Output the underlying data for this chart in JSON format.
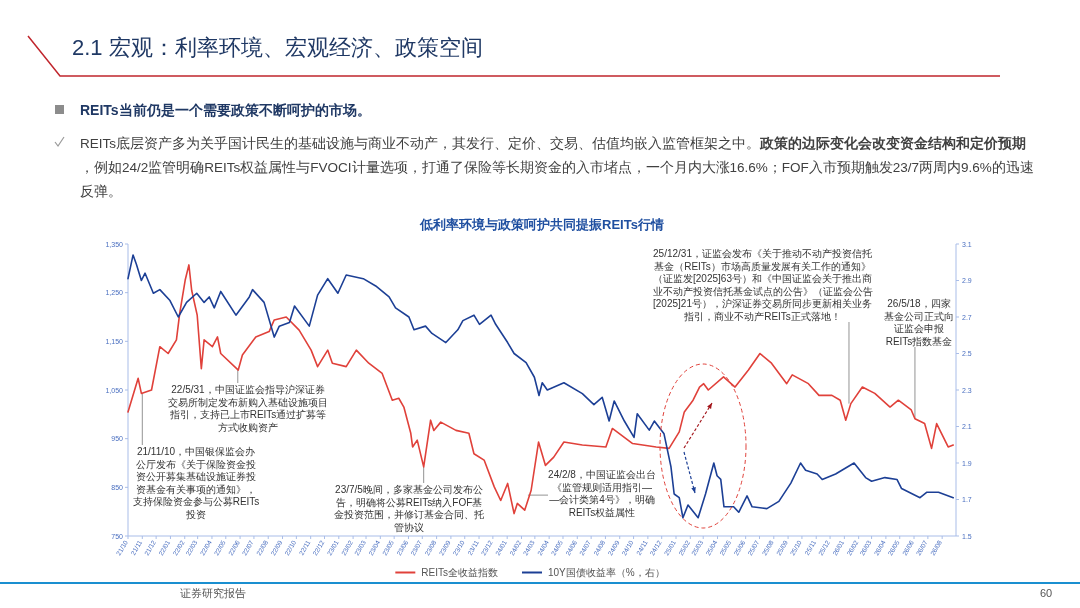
{
  "chart_data": {
    "type": "line",
    "title": "低利率环境与政策呵护共同提振REITs行情",
    "annotations": [
      "2.1 宏观：利率环境、宏观经济、政策空间",
      "REITs当前仍是一个需要政策不断呵护的市场。",
      "REITs底层资产多为关乎国计民生的基础设施与商业不动产，其发行、定价、交易、估值均嵌入监管框架之中。**政策的边际变化会改变资金结构和定价预期**，例如24/2监管明确REITs权益属性与FVOCI计量选项，打通了保险等长期资金的入市堵点，一个月内大涨16.6%；FOF入市预期触发23/7两周内9.6%的迅速反弹。",
      "证券研究报告",
      "60",
      {
        "text": "21/11/10，中国银保监会办公厅发布《关于保险资金投资公开募集基础设施证券投资基金有关事项的通知》，支持保险资金参与公募REITs投资",
        "x": "2021-11-01",
        "y": 1043
      },
      {
        "text": "22/5/31，中国证监会指导沪深证券交易所制定发布新购入基础设施项目指引，支持已上市REITs通过扩募等方式收购资产",
        "x": "2022-05-27",
        "y": 1091
      },
      {
        "text": "23/7/5晚间，多家基金公司发布公告，明确将公募REITs纳入FOF基金投资范围，并修订基金合同、托管协议",
        "x": "2023-07-04",
        "y": 892
      },
      {
        "text": "24/2/8，中国证监会出台《监管规则适用指引——会计类第4号》，明确REITs权益属性",
        "x": "2024-02-15",
        "y": 834
      },
      {
        "text": "25/12/31，证监会发布《关于推动不动产投资信托基金（REITs）市场高质量发展有关工作的通知》（证监发[2025]63号）和《中国证监会关于推出商业不动产投资信托基金试点的公告》（证监会公告[2025]21号），沪深证券交易所同步更新相关业务指引，商业不动产REITs正式落地！",
        "x": "2026-01-11",
        "y": 1022
      },
      {
        "text": "26/5/18，四家基金公司正式向证监会申报REITs指数基金",
        "x": "2026-06-03",
        "y": 991
      }
    ],
    "xlim": [
      "2021-10-01",
      "2026-08-31"
    ],
    "xticks": [
      {
        "value": "2021-10-01",
        "label": "21/10"
      },
      {
        "value": "2021-11-01",
        "label": "21/11"
      },
      {
        "value": "2021-12-01",
        "label": "21/12"
      },
      {
        "value": "2022-01-01",
        "label": "22/01"
      },
      {
        "value": "2022-02-01",
        "label": "22/02"
      },
      {
        "value": "2022-03-01",
        "label": "22/03"
      },
      {
        "value": "2022-04-01",
        "label": "22/04"
      },
      {
        "value": "2022-05-01",
        "label": "22/05"
      },
      {
        "value": "2022-06-01",
        "label": "22/06"
      },
      {
        "value": "2022-07-01",
        "label": "22/07"
      },
      {
        "value": "2022-08-01",
        "label": "22/08"
      },
      {
        "value": "2022-09-01",
        "label": "22/09"
      },
      {
        "value": "2022-10-01",
        "label": "22/10"
      },
      {
        "value": "2022-11-01",
        "label": "22/11"
      },
      {
        "value": "2022-12-01",
        "label": "22/12"
      },
      {
        "value": "2023-01-01",
        "label": "23/01"
      },
      {
        "value": "2023-02-01",
        "label": "23/02"
      },
      {
        "value": "2023-03-01",
        "label": "23/03"
      },
      {
        "value": "2023-04-01",
        "label": "23/04"
      },
      {
        "value": "2023-05-01",
        "label": "23/05"
      },
      {
        "value": "2023-06-01",
        "label": "23/06"
      },
      {
        "value": "2023-07-01",
        "label": "23/07"
      },
      {
        "value": "2023-08-01",
        "label": "23/08"
      },
      {
        "value": "2023-09-01",
        "label": "23/09"
      },
      {
        "value": "2023-10-01",
        "label": "23/10"
      },
      {
        "value": "2023-11-01",
        "label": "23/11"
      },
      {
        "value": "2023-12-01",
        "label": "23/12"
      },
      {
        "value": "2024-01-01",
        "label": "24/01"
      },
      {
        "value": "2024-02-01",
        "label": "24/02"
      },
      {
        "value": "2024-03-01",
        "label": "24/03"
      },
      {
        "value": "2024-04-01",
        "label": "24/04"
      },
      {
        "value": "2024-05-01",
        "label": "24/05"
      },
      {
        "value": "2024-06-01",
        "label": "24/06"
      },
      {
        "value": "2024-07-01",
        "label": "24/07"
      },
      {
        "value": "2024-08-01",
        "label": "24/08"
      },
      {
        "value": "2024-09-01",
        "label": "24/09"
      },
      {
        "value": "2024-10-01",
        "label": "24/10"
      },
      {
        "value": "2024-11-01",
        "label": "24/11"
      },
      {
        "value": "2024-12-01",
        "label": "24/12"
      },
      {
        "value": "2025-01-01",
        "label": "25/01"
      },
      {
        "value": "2025-02-01",
        "label": "25/02"
      },
      {
        "value": "2025-03-01",
        "label": "25/03"
      },
      {
        "value": "2025-04-01",
        "label": "25/04"
      },
      {
        "value": "2025-05-01",
        "label": "25/05"
      },
      {
        "value": "2025-06-01",
        "label": "25/06"
      },
      {
        "value": "2025-07-01",
        "label": "25/07"
      },
      {
        "value": "2025-08-01",
        "label": "25/08"
      },
      {
        "value": "2025-09-01",
        "label": "25/09"
      },
      {
        "value": "2025-10-01",
        "label": "25/10"
      },
      {
        "value": "2025-11-01",
        "label": "25/11"
      },
      {
        "value": "2025-12-01",
        "label": "25/12"
      },
      {
        "value": "2026-01-01",
        "label": "26/01"
      },
      {
        "value": "2026-02-01",
        "label": "26/02"
      },
      {
        "value": "2026-03-01",
        "label": "26/03"
      },
      {
        "value": "2026-04-01",
        "label": "26/04"
      },
      {
        "value": "2026-05-01",
        "label": "26/05"
      },
      {
        "value": "2026-06-01",
        "label": "26/06"
      },
      {
        "value": "2026-07-01",
        "label": "26/07"
      },
      {
        "value": "2026-08-01",
        "label": "26/08"
      }
    ],
    "ylim": [
      750,
      1350
    ],
    "yticks": [
      750,
      850,
      950,
      {
        "value": 1050,
        "label": "1,050"
      },
      {
        "value": 1150,
        "label": "1,150"
      },
      {
        "value": 1250,
        "label": "1,250"
      },
      {
        "value": 1350,
        "label": "1,350"
      }
    ],
    "y2lim": [
      1.5,
      3.1
    ],
    "y2ticks": [
      1.5,
      1.7,
      1.9,
      2.1,
      2.3,
      2.5,
      2.7,
      2.9,
      3.1
    ],
    "legend": "bottom",
    "series": [
      {
        "name": "REITs全收益指数",
        "color": "#e0413a",
        "x": [
          "2021-10-01",
          "2021-10-23",
          "2021-10-30",
          "2021-11-21",
          "2021-12-09",
          "2021-12-27",
          "2022-01-14",
          "2022-01-21",
          "2022-02-02",
          "2022-02-10",
          "2022-02-16",
          "2022-02-28",
          "2022-03-09",
          "2022-03-15",
          "2022-04-02",
          "2022-04-13",
          "2022-04-20",
          "2022-05-28",
          "2022-06-06",
          "2022-07-05",
          "2022-08-03",
          "2022-08-14",
          "2022-09-09",
          "2022-10-07",
          "2022-11-02",
          "2022-11-16",
          "2022-12-08",
          "2022-12-18",
          "2023-01-17",
          "2023-02-08",
          "2023-03-07",
          "2023-04-05",
          "2023-04-27",
          "2023-05-11",
          "2023-05-22",
          "2023-06-06",
          "2023-06-10",
          "2023-06-20",
          "2023-07-04",
          "2023-07-19",
          "2023-07-26",
          "2023-08-10",
          "2023-09-12",
          "2023-10-10",
          "2023-10-21",
          "2023-11-12",
          "2023-12-04",
          "2023-12-18",
          "2024-01-02",
          "2024-01-16",
          "2024-01-23",
          "2024-02-08",
          "2024-02-22",
          "2024-03-09",
          "2024-03-24",
          "2024-04-11",
          "2024-05-03",
          "2024-06-12",
          "2024-08-02",
          "2024-08-16",
          "2024-09-29",
          "2024-11-19",
          "2024-12-17",
          "2025-01-08",
          "2025-01-19",
          "2025-02-07",
          "2025-02-21",
          "2025-03-02",
          "2025-03-12",
          "2025-04-14",
          "2025-05-09",
          "2025-06-07",
          "2025-07-02",
          "2025-07-27",
          "2025-08-29",
          "2025-09-10",
          "2025-10-15",
          "2025-11-07",
          "2025-12-05",
          "2025-12-23",
          "2026-01-04",
          "2026-01-15",
          "2026-02-09",
          "2026-03-08",
          "2026-04-10",
          "2026-04-28",
          "2026-05-26",
          "2026-06-03",
          "2026-06-24",
          "2026-07-09",
          "2026-07-20",
          "2026-08-14",
          "2026-08-25"
        ],
        "values": [
          1005,
          1074,
          1043,
          1050,
          1139,
          1125,
          1153,
          1207,
          1276,
          1307,
          1255,
          1204,
          1094,
          1153,
          1139,
          1159,
          1125,
          1091,
          1122,
          1159,
          1170,
          1194,
          1200,
          1173,
          1132,
          1098,
          1132,
          1105,
          1098,
          1132,
          1105,
          1084,
          1029,
          1033,
          1015,
          961,
          933,
          947,
          892,
          988,
          967,
          984,
          967,
          961,
          919,
          906,
          851,
          823,
          858,
          796,
          817,
          803,
          844,
          943,
          895,
          912,
          943,
          937,
          933,
          971,
          940,
          933,
          930,
          964,
          1005,
          1029,
          1056,
          1063,
          1050,
          1077,
          1056,
          1091,
          1125,
          1105,
          1063,
          1081,
          1063,
          1039,
          1039,
          1029,
          988,
          1022,
          1056,
          1043,
          1015,
          1029,
          1009,
          991,
          981,
          930,
          981,
          933,
          937
        ]
      },
      {
        "name": "10Y国债收益率（%，右）",
        "color": "#1c3f95",
        "axis": "y2",
        "x": [
          "2021-10-01",
          "2021-10-12",
          "2021-10-19",
          "2021-10-30",
          "2021-11-07",
          "2021-11-25",
          "2021-12-09",
          "2021-12-31",
          "2022-01-18",
          "2022-02-05",
          "2022-02-27",
          "2022-03-15",
          "2022-03-26",
          "2022-04-06",
          "2022-04-20",
          "2022-05-23",
          "2022-06-21",
          "2022-06-28",
          "2022-07-23",
          "2022-08-14",
          "2022-08-25",
          "2022-09-16",
          "2022-09-27",
          "2022-10-29",
          "2022-11-16",
          "2022-12-08",
          "2022-12-30",
          "2023-01-17",
          "2023-02-23",
          "2023-03-22",
          "2023-04-20",
          "2023-05-04",
          "2023-06-02",
          "2023-06-13",
          "2023-07-08",
          "2023-07-22",
          "2023-08-21",
          "2023-09-16",
          "2023-09-27",
          "2023-10-21",
          "2023-11-02",
          "2023-11-27",
          "2023-12-07",
          "2024-01-02",
          "2024-01-16",
          "2024-02-11",
          "2024-02-29",
          "2024-03-10",
          "2024-03-17",
          "2024-03-28",
          "2024-05-03",
          "2024-06-12",
          "2024-07-07",
          "2024-07-25",
          "2024-08-09",
          "2024-08-20",
          "2024-09-11",
          "2024-10-02",
          "2024-10-09",
          "2024-11-04",
          "2024-11-15",
          "2024-12-06",
          "2024-12-21",
          "2024-12-28",
          "2025-01-08",
          "2025-01-16",
          "2025-01-27",
          "2025-02-18",
          "2025-03-06",
          "2025-03-24",
          "2025-03-31",
          "2025-04-08",
          "2025-04-15",
          "2025-05-06",
          "2025-05-17",
          "2025-06-04",
          "2025-06-15",
          "2025-07-17",
          "2025-08-12",
          "2025-09-07",
          "2025-09-28",
          "2025-10-09",
          "2025-11-03",
          "2025-11-14",
          "2025-12-13",
          "2026-01-22",
          "2026-02-16",
          "2026-03-01",
          "2026-03-30",
          "2026-04-25",
          "2026-05-05",
          "2026-06-14",
          "2026-06-29",
          "2026-07-24",
          "2026-08-25"
        ],
        "values": [
          2.91,
          3.04,
          2.99,
          2.9,
          2.94,
          2.83,
          2.85,
          2.79,
          2.7,
          2.78,
          2.83,
          2.78,
          2.81,
          2.75,
          2.84,
          2.71,
          2.81,
          2.85,
          2.78,
          2.59,
          2.65,
          2.67,
          2.76,
          2.65,
          2.82,
          2.91,
          2.83,
          2.93,
          2.91,
          2.87,
          2.81,
          2.75,
          2.7,
          2.63,
          2.65,
          2.61,
          2.56,
          2.63,
          2.68,
          2.71,
          2.66,
          2.71,
          2.66,
          2.56,
          2.5,
          2.45,
          2.37,
          2.27,
          2.34,
          2.3,
          2.34,
          2.28,
          2.22,
          2.26,
          2.13,
          2.24,
          2.13,
          2.04,
          2.17,
          2.08,
          2.13,
          2.06,
          1.88,
          1.73,
          1.71,
          1.6,
          1.67,
          1.6,
          1.73,
          1.9,
          1.83,
          1.81,
          1.66,
          1.66,
          1.63,
          1.72,
          1.66,
          1.65,
          1.69,
          1.79,
          1.9,
          1.86,
          1.84,
          1.81,
          1.84,
          1.9,
          1.82,
          1.8,
          1.82,
          1.81,
          1.76,
          1.71,
          1.74,
          1.74,
          1.71
        ]
      }
    ]
  }
}
